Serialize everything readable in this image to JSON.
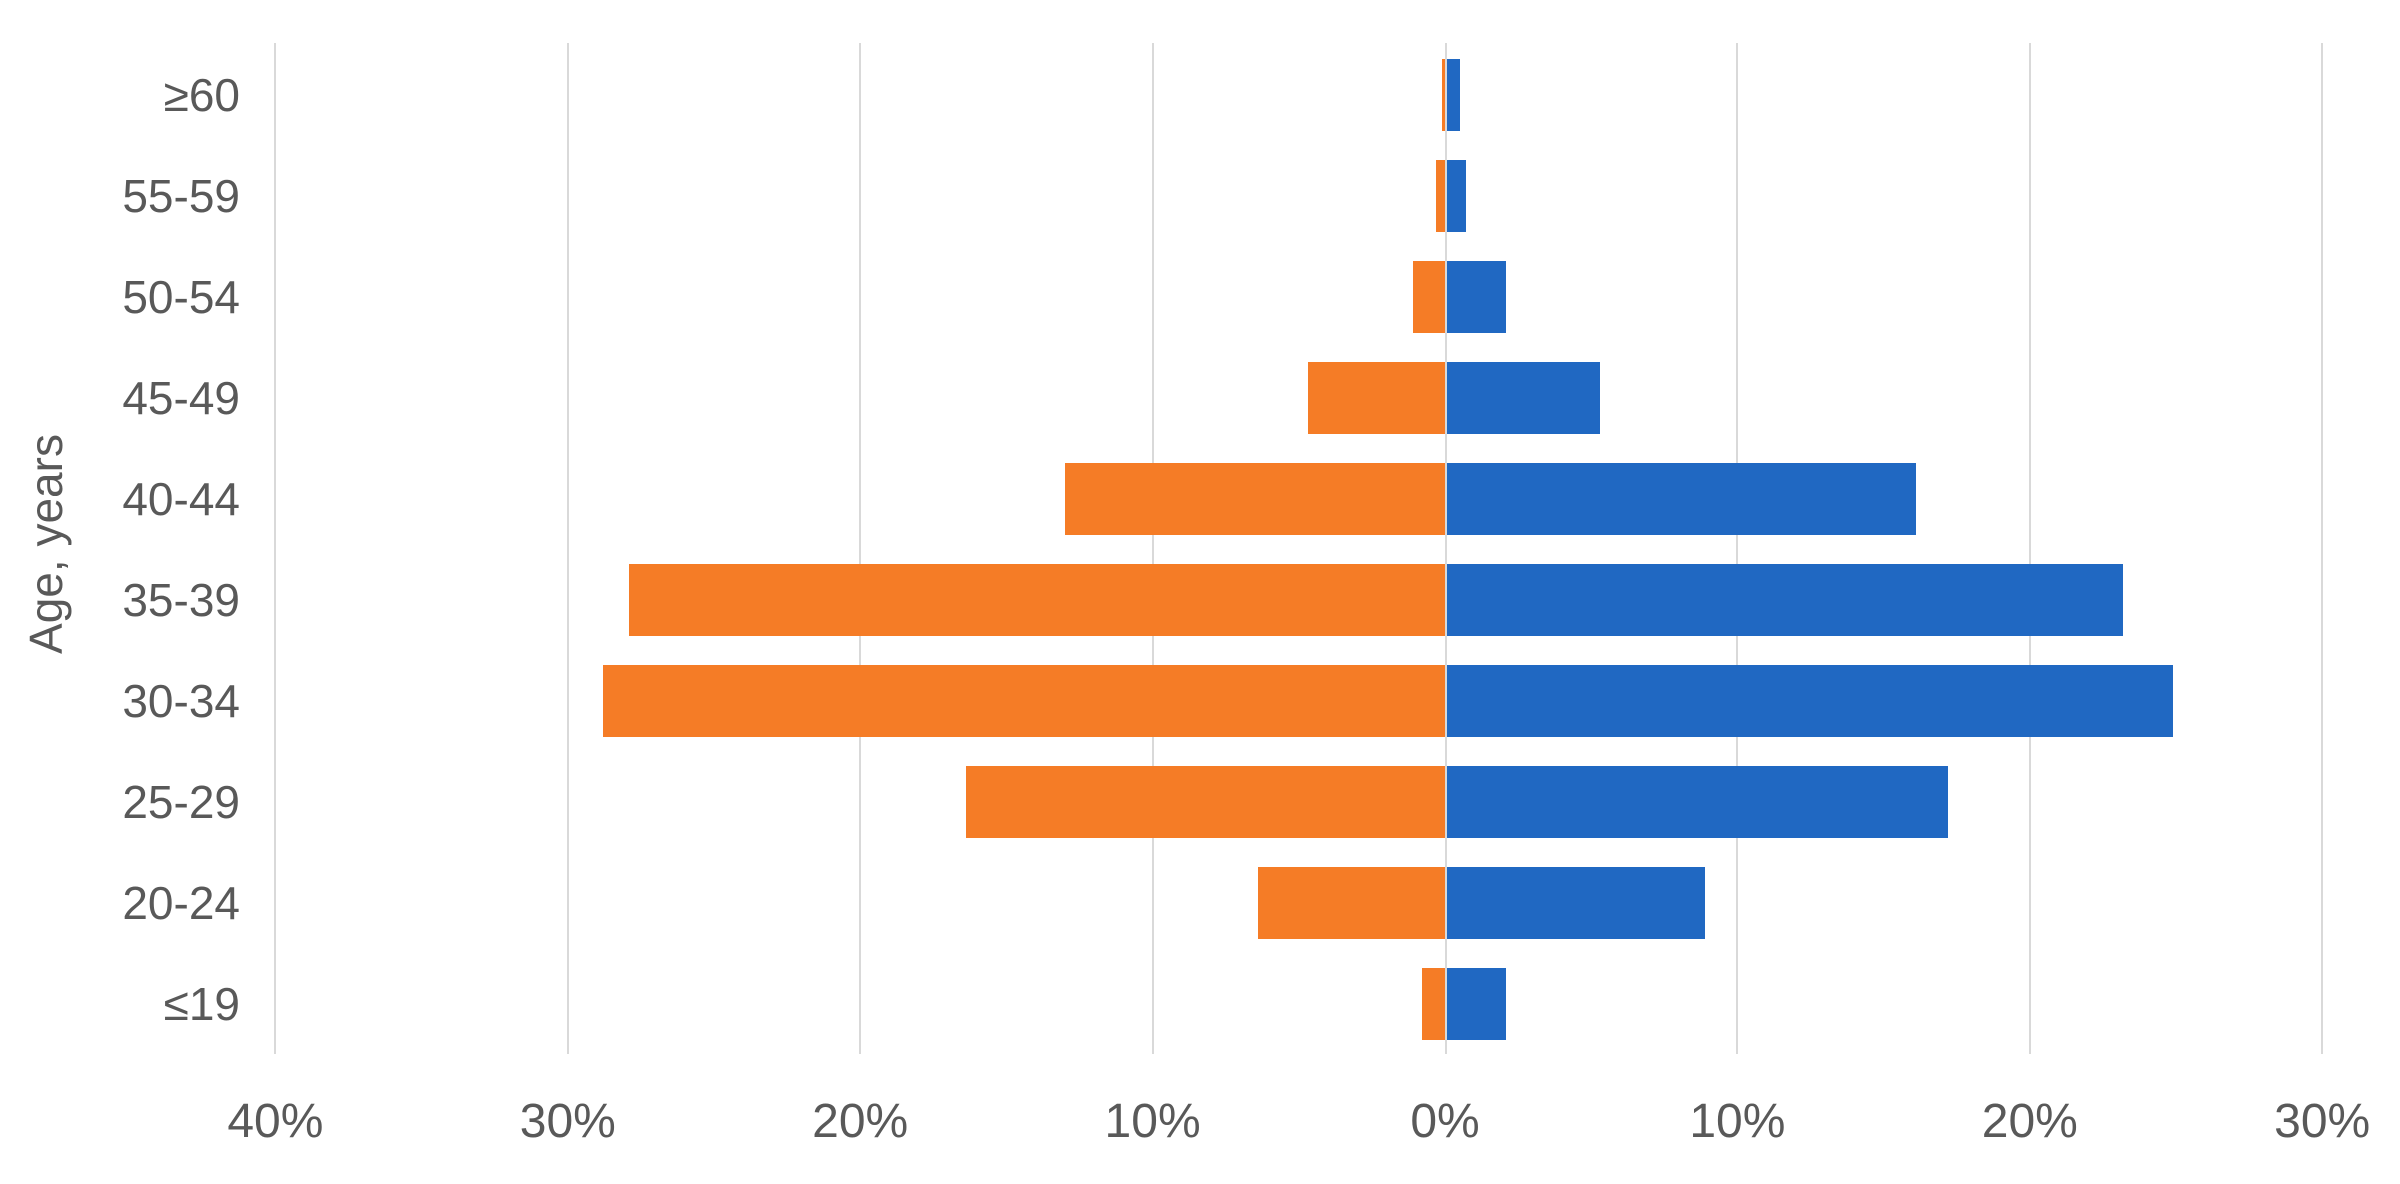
{
  "chart_data": {
    "type": "bar",
    "variant": "population-pyramid",
    "orientation": "horizontal",
    "title": "",
    "xlabel": "",
    "ylabel": "Age, years",
    "unit": "%",
    "grid": true,
    "legend": "none",
    "background": "#FFFFFF",
    "gridline_color": "#D9D9D9",
    "text_color": "#595959",
    "categories": [
      "≥60",
      "55-59",
      "50-54",
      "45-49",
      "40-44",
      "35-39",
      "30-34",
      "25-29",
      "20-24",
      "≤19"
    ],
    "series": [
      {
        "name": "left (orange)",
        "direction": "left",
        "color": "#F57C26",
        "values": [
          0.1,
          0.3,
          1.1,
          4.7,
          13.0,
          27.9,
          28.8,
          16.4,
          6.4,
          0.8
        ]
      },
      {
        "name": "right (blue)",
        "direction": "right",
        "color": "#2068C2",
        "values": [
          0.5,
          0.7,
          2.1,
          5.3,
          16.1,
          23.2,
          24.9,
          17.2,
          8.9,
          2.1
        ]
      }
    ],
    "x_ticks": [
      {
        "label": "40%",
        "value": -40
      },
      {
        "label": "30%",
        "value": -30
      },
      {
        "label": "20%",
        "value": -20
      },
      {
        "label": "10%",
        "value": -10
      },
      {
        "label": "0%",
        "value": 0
      },
      {
        "label": "10%",
        "value": 10
      },
      {
        "label": "20%",
        "value": 20
      },
      {
        "label": "30%",
        "value": 30
      }
    ],
    "x_axis_range": [
      -40,
      32
    ]
  }
}
